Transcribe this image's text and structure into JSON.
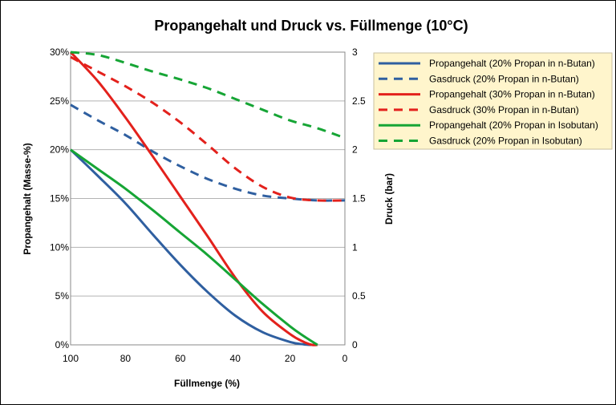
{
  "chart_data": {
    "type": "line",
    "title": "Propangehalt und Druck vs. Füllmenge (10°C)",
    "xlabel": "Füllmenge (%)",
    "ylabel_left": "Propangehalt (Masse-%)",
    "ylabel_right": "Druck (bar)",
    "x_range": [
      100,
      0
    ],
    "x_ticks": [
      "100",
      "80",
      "60",
      "40",
      "20",
      "0"
    ],
    "x_tick_values": [
      100,
      80,
      60,
      40,
      20,
      0
    ],
    "y_left_range": [
      0,
      30
    ],
    "y_left_ticks": [
      "0%",
      "5%",
      "10%",
      "15%",
      "20%",
      "25%",
      "30%"
    ],
    "y_left_tick_values": [
      0,
      5,
      10,
      15,
      20,
      25,
      30
    ],
    "y_right_range": [
      0,
      3
    ],
    "y_right_ticks": [
      "0",
      "0.5",
      "1",
      "1.5",
      "2",
      "2.5",
      "3"
    ],
    "y_right_tick_values": [
      0,
      0.5,
      1,
      1.5,
      2,
      2.5,
      3
    ],
    "grid": "horizontal",
    "legend_position": "right",
    "series": [
      {
        "name": "Propangehalt (20% Propan in n-Butan)",
        "axis": "left",
        "color": "#2f5fa0",
        "dash": false,
        "x": [
          100,
          90,
          80,
          70,
          60,
          50,
          40,
          30,
          20,
          15,
          12,
          10
        ],
        "y": [
          20,
          17.3,
          14.5,
          11.3,
          8.2,
          5.4,
          3.0,
          1.3,
          0.3,
          0.05,
          0,
          0
        ]
      },
      {
        "name": "Gasdruck (20% Propan in n-Butan)",
        "axis": "right",
        "color": "#2f5fa0",
        "dash": true,
        "x": [
          100,
          90,
          80,
          70,
          60,
          50,
          40,
          30,
          20,
          10,
          0
        ],
        "y": [
          2.46,
          2.3,
          2.15,
          1.98,
          1.83,
          1.7,
          1.6,
          1.53,
          1.5,
          1.48,
          1.48
        ]
      },
      {
        "name": "Propangehalt (30% Propan in n-Butan)",
        "axis": "left",
        "color": "#e3211c",
        "dash": false,
        "x": [
          100,
          90,
          80,
          70,
          60,
          50,
          40,
          30,
          20,
          15,
          12,
          10
        ],
        "y": [
          30,
          27,
          23.3,
          19.3,
          15.2,
          11.1,
          6.9,
          3.4,
          1.1,
          0.3,
          0,
          0
        ]
      },
      {
        "name": "Gasdruck (30% Propan in n-Butan)",
        "axis": "right",
        "color": "#e3211c",
        "dash": true,
        "x": [
          100,
          90,
          80,
          70,
          60,
          50,
          40,
          30,
          20,
          10,
          0
        ],
        "y": [
          2.95,
          2.8,
          2.65,
          2.48,
          2.28,
          2.05,
          1.81,
          1.62,
          1.51,
          1.48,
          1.48
        ]
      },
      {
        "name": "Propangehalt (20% Propan in Isobutan)",
        "axis": "left",
        "color": "#16a535",
        "dash": false,
        "x": [
          100,
          90,
          80,
          70,
          60,
          50,
          40,
          30,
          20,
          15,
          10
        ],
        "y": [
          20,
          18,
          16,
          13.8,
          11.5,
          9.2,
          6.7,
          4.2,
          1.9,
          0.9,
          0
        ]
      },
      {
        "name": "Gasdruck (20% Propan in Isobutan)",
        "axis": "right",
        "color": "#16a535",
        "dash": true,
        "x": [
          100,
          90,
          80,
          70,
          60,
          50,
          40,
          30,
          20,
          10,
          0
        ],
        "y": [
          3.0,
          2.97,
          2.89,
          2.8,
          2.72,
          2.63,
          2.52,
          2.41,
          2.3,
          2.22,
          2.12
        ]
      }
    ]
  }
}
